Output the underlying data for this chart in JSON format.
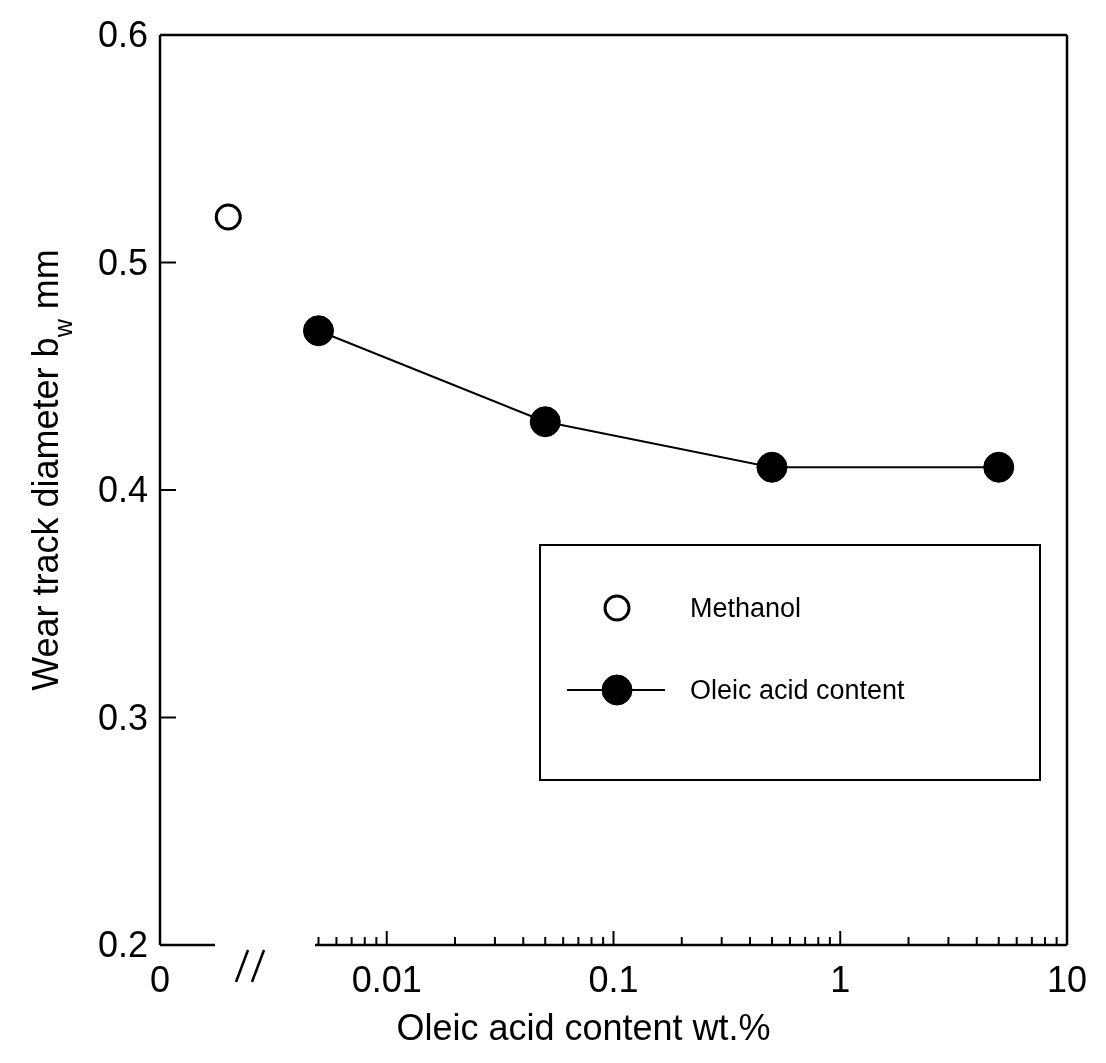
{
  "chart_data": {
    "type": "line",
    "xlabel": "Oleic acid content  wt.%",
    "ylabel": "Wear track diameter    b$_{w}$  mm",
    "log": "x",
    "xlim": [
      0.001,
      10
    ],
    "ylim": [
      0.2,
      0.6
    ],
    "xticks": [
      {
        "value": 0.001,
        "label": "0"
      },
      {
        "value": 0.005,
        "label": null
      },
      {
        "value": 0.006,
        "label": null
      },
      {
        "value": 0.007,
        "label": null
      },
      {
        "value": 0.008,
        "label": null
      },
      {
        "value": 0.009,
        "label": null
      },
      0.01,
      {
        "value": 0.02,
        "label": null
      },
      {
        "value": 0.03,
        "label": null
      },
      {
        "value": 0.04,
        "label": null
      },
      {
        "value": 0.05,
        "label": null
      },
      {
        "value": 0.06,
        "label": null
      },
      {
        "value": 0.07,
        "label": null
      },
      {
        "value": 0.08,
        "label": null
      },
      {
        "value": 0.09,
        "label": null
      },
      0.1,
      {
        "value": 0.2,
        "label": null
      },
      {
        "value": 0.3,
        "label": null
      },
      {
        "value": 0.4,
        "label": null
      },
      {
        "value": 0.5,
        "label": null
      },
      {
        "value": 0.6,
        "label": null
      },
      {
        "value": 0.7,
        "label": null
      },
      {
        "value": 0.8,
        "label": null
      },
      {
        "value": 0.9,
        "label": null
      },
      1,
      {
        "value": 2,
        "label": null
      },
      {
        "value": 3,
        "label": null
      },
      {
        "value": 4,
        "label": null
      },
      {
        "value": 5,
        "label": null
      },
      {
        "value": 6,
        "label": null
      },
      {
        "value": 7,
        "label": null
      },
      {
        "value": 8,
        "label": null
      },
      {
        "value": 9,
        "label": null
      },
      10
    ],
    "yticks": [
      0.2,
      0.3,
      0.4,
      0.5,
      0.6
    ],
    "grid": false,
    "legend": "right",
    "marker": "circle",
    "line_style": "solid",
    "series": [
      {
        "name": "Methanol",
        "type": "scatter",
        "color": "#000000",
        "x": [
          0.002
        ],
        "values": [
          0.52
        ]
      },
      {
        "name": "Oleic acid content",
        "color": "#000000",
        "x": [
          0.005,
          0.05,
          0.5,
          5
        ],
        "values": [
          0.47,
          0.43,
          0.41,
          0.41
        ]
      }
    ]
  }
}
